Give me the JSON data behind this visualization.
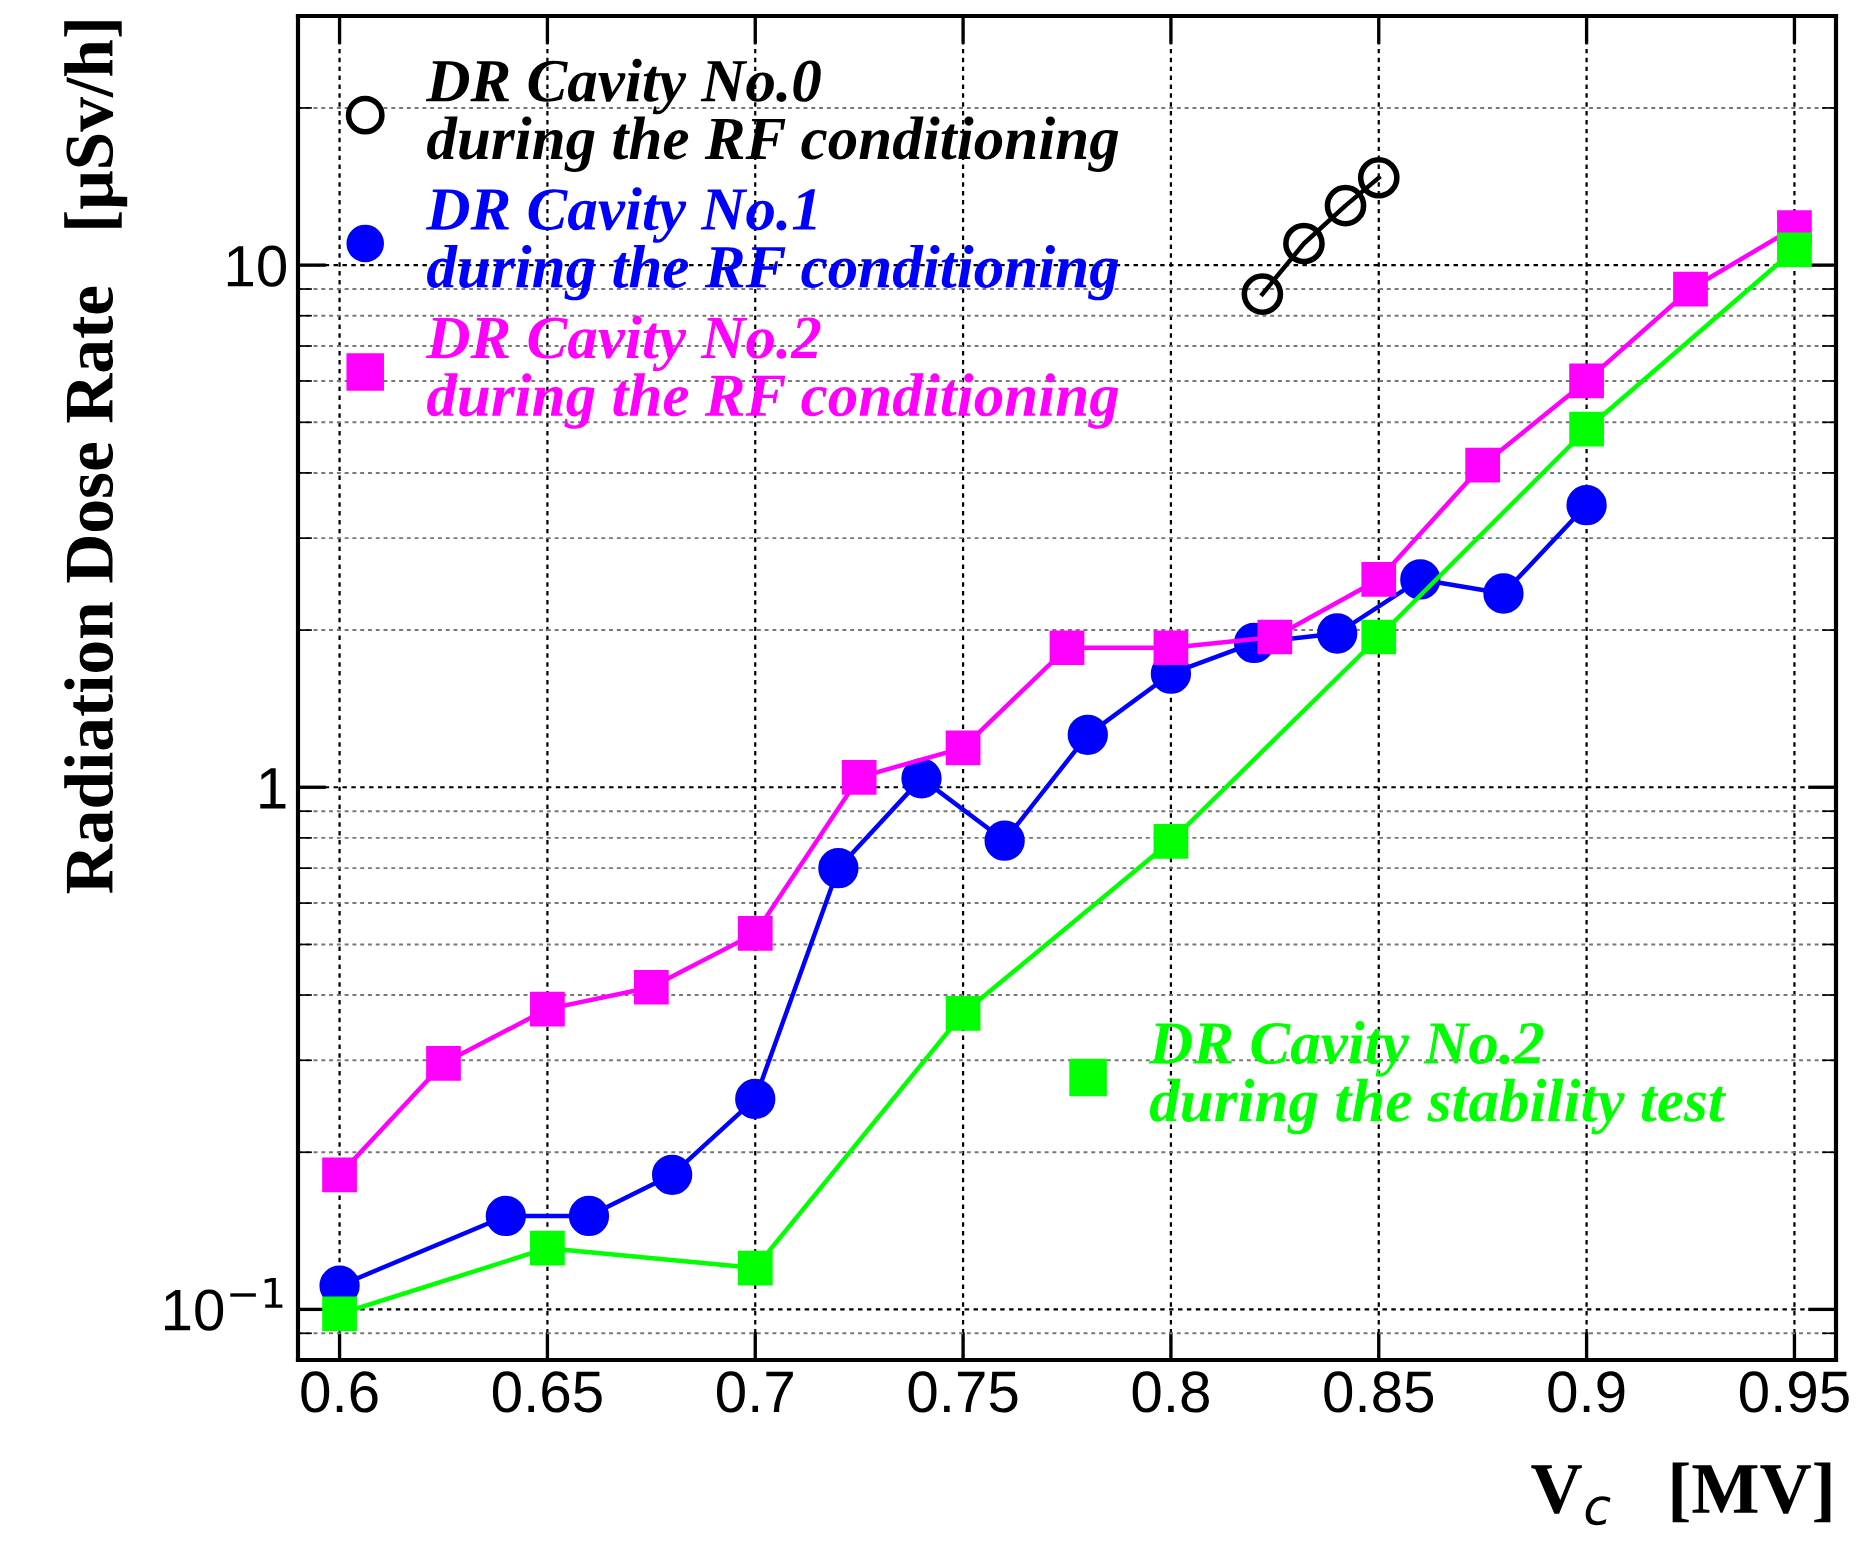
{
  "chart_data": {
    "type": "line",
    "xlabel": "V$_{c}$   [MV]",
    "ylabel": "Radiation Dose Rate   [μSv/h]",
    "log": "y",
    "grid": true,
    "legend": "top left",
    "xlim": [
      0.59,
      0.96
    ],
    "xticks": [
      0.6,
      0.65,
      0.7,
      0.75,
      0.8,
      0.85,
      0.9,
      0.95
    ],
    "ylim": [
      0.08,
      30
    ],
    "yticks": [
      {
        "value": 0.1,
        "label": "10$^{−1}$"
      },
      1,
      10
    ],
    "series": [
      {
        "name": "DR Cavity No.0\nduring the RF conditioning",
        "color": "#000000",
        "marker": "open circle",
        "x": [
          0.822,
          0.832,
          0.842,
          0.85
        ],
        "values": [
          8.8,
          11.0,
          13.0,
          14.7
        ]
      },
      {
        "name": "DR Cavity No.1\nduring the RF conditioning",
        "color": "#0000ff",
        "marker": "circle",
        "x": [
          0.6,
          0.64,
          0.66,
          0.68,
          0.7,
          0.72,
          0.74,
          0.76,
          0.78,
          0.8,
          0.82,
          0.84,
          0.86,
          0.88,
          0.9
        ],
        "values": [
          0.111,
          0.151,
          0.151,
          0.181,
          0.253,
          0.7,
          1.04,
          0.79,
          1.26,
          1.65,
          1.89,
          1.97,
          2.5,
          2.35,
          3.47
        ]
      },
      {
        "name": "DR Cavity No.2\nduring the RF conditioning",
        "color": "#ff00ff",
        "marker": "square",
        "x": [
          0.6,
          0.625,
          0.65,
          0.675,
          0.7,
          0.725,
          0.75,
          0.775,
          0.8,
          0.825,
          0.85,
          0.875,
          0.9,
          0.925,
          0.95
        ],
        "values": [
          0.181,
          0.296,
          0.376,
          0.414,
          0.525,
          1.045,
          1.19,
          1.85,
          1.85,
          1.94,
          2.5,
          4.14,
          6.0,
          9.0,
          11.8
        ]
      },
      {
        "name": "DR Cavity No.2\nduring the stability test",
        "color": "#00ff00",
        "marker": "square",
        "x": [
          0.6,
          0.65,
          0.7,
          0.75,
          0.8,
          0.85,
          0.9,
          0.95
        ],
        "values": [
          0.098,
          0.131,
          0.12,
          0.369,
          0.788,
          1.94,
          4.85,
          10.7
        ]
      }
    ]
  }
}
